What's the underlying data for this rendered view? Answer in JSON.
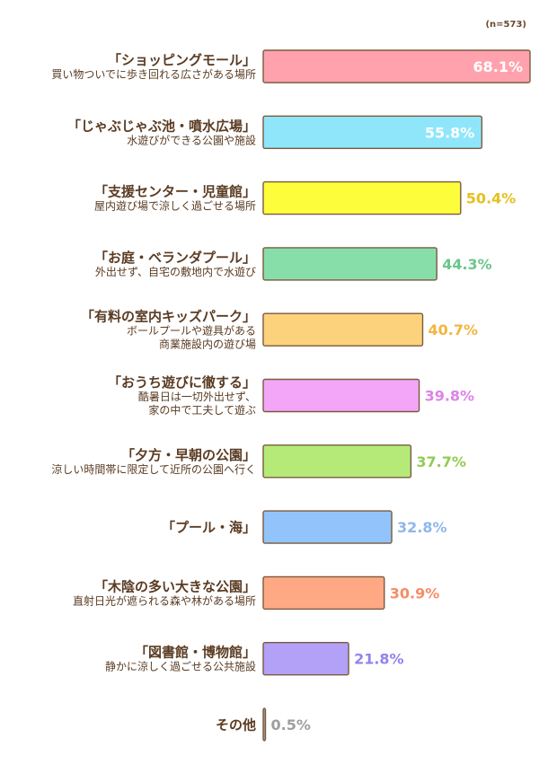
{
  "sample_note": "(n=573)",
  "chart_data": {
    "type": "bar",
    "orientation": "horizontal",
    "xlim": [
      0,
      68.1
    ],
    "categories": [
      {
        "label": "「ショッピングモール」",
        "sub": [
          "買い物ついでに歩き回れる広さがある場所"
        ]
      },
      {
        "label": "「じゃぶじゃぶ池・噴水広場」",
        "sub": [
          "水遊びができる公園や施設"
        ]
      },
      {
        "label": "「支援センター・児童館」",
        "sub": [
          "屋内遊び場で涼しく過ごせる場所"
        ]
      },
      {
        "label": "「お庭・ベランダプール」",
        "sub": [
          "外出せず、自宅の敷地内で水遊び"
        ]
      },
      {
        "label": "「有料の室内キッズパーク」",
        "sub": [
          "ボールプールや遊具がある",
          "商業施設内の遊び場"
        ]
      },
      {
        "label": "「おうち遊びに徹する」",
        "sub": [
          "酷暑日は一切外出せず、",
          "家の中で工夫して遊ぶ"
        ]
      },
      {
        "label": "「夕方・早朝の公園」",
        "sub": [
          "涼しい時間帯に限定して近所の公園へ行く"
        ]
      },
      {
        "label": "「プール・海」",
        "sub": []
      },
      {
        "label": "「木陰の多い大きな公園」",
        "sub": [
          "直射日光が遮られる森や林がある場所"
        ]
      },
      {
        "label": "「図書館・博物館」",
        "sub": [
          "静かに涼しく過ごせる公共施設"
        ]
      },
      {
        "label": "その他",
        "sub": []
      }
    ],
    "values": [
      68.1,
      55.8,
      50.4,
      44.3,
      40.7,
      39.8,
      37.7,
      32.8,
      30.9,
      21.8,
      0.5
    ],
    "value_labels": [
      "68.1%",
      "55.8%",
      "50.4%",
      "44.3%",
      "40.7%",
      "39.8%",
      "37.7%",
      "32.8%",
      "30.9%",
      "21.8%",
      "0.5%"
    ],
    "colors": [
      "#ffa2ae",
      "#8fe6fb",
      "#fdfd3c",
      "#88dea9",
      "#fdd27c",
      "#f3a6f7",
      "#b5ea78",
      "#92c4fb",
      "#fea884",
      "#b3a0f7",
      "#9e9e9e"
    ],
    "label_colors": [
      "#ffffff",
      "#ffffff",
      "#e6c01f",
      "#6cc58c",
      "#f2b53e",
      "#dd83e8",
      "#92cc52",
      "#8fb7ea",
      "#f78c67",
      "#9184ec",
      "#9e9e9e"
    ],
    "label_inside": [
      true,
      true,
      false,
      false,
      false,
      false,
      false,
      false,
      false,
      false,
      false
    ],
    "text_color": "#5a3b22",
    "outline_color": "#7a5a3e"
  }
}
